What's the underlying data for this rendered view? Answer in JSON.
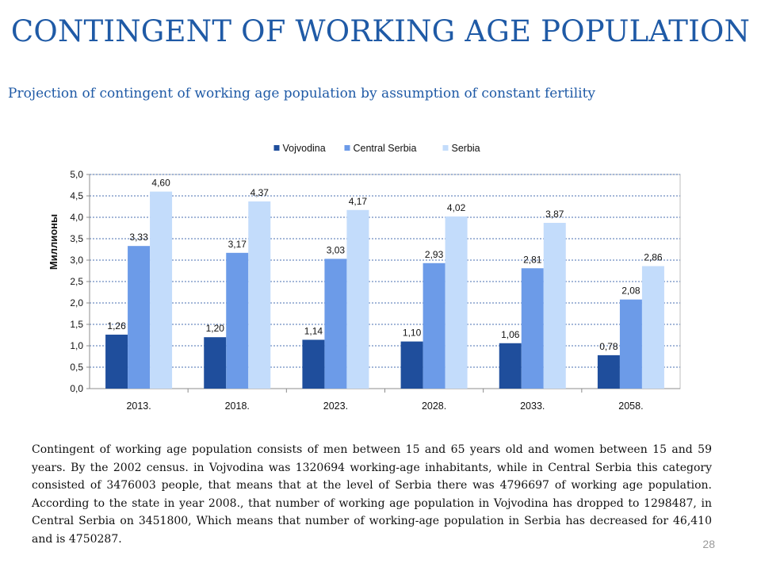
{
  "slide": {
    "title": "CONTINGENT OF WORKING AGE POPULATION",
    "subtitle": "Projection of contingent of working age population by assumption of constant fertility",
    "body": "Contingent of working age population consists of men between 15 and 65 years old and women between 15 and 59 years. By the 2002 census. in Vojvodina was 1320694 working-age inhabitants,  while in Central Serbia this category consisted of 3476003 people, that means that at the level of Serbia there was 4796697 of working age population. According to the state in year 2008., that number of working age population in Vojvodina has dropped to 1298487, in Central Serbia on 3451800, Which means that number of working-age population in Serbia has decreased for 46,410 and is 4750287.",
    "page_number": "28"
  },
  "chart_data": {
    "type": "bar",
    "title": "",
    "xlabel": "",
    "ylabel": "Миллионы",
    "categories": [
      "2013.",
      "2018.",
      "2023.",
      "2028.",
      "2033.",
      "2058."
    ],
    "series": [
      {
        "name": "Vojvodina",
        "color": "#1f4e9c",
        "values": [
          1.26,
          1.2,
          1.14,
          1.1,
          1.06,
          0.78
        ],
        "labels": [
          "1,26",
          "1,20",
          "1,14",
          "1,10",
          "1,06",
          "0,78"
        ]
      },
      {
        "name": "Central Serbia",
        "color": "#6c9be8",
        "values": [
          3.33,
          3.17,
          3.03,
          2.93,
          2.81,
          2.08
        ],
        "labels": [
          "3,33",
          "3,17",
          "3,03",
          "2,93",
          "2,81",
          "2,08"
        ]
      },
      {
        "name": "Serbia",
        "color": "#c3dcfb",
        "values": [
          4.6,
          4.37,
          4.17,
          4.02,
          3.87,
          2.86
        ],
        "labels": [
          "4,60",
          "4,37",
          "4,17",
          "4,02",
          "3,87",
          "2,86"
        ]
      }
    ],
    "ylim": [
      0,
      5
    ],
    "yticks": [
      "0,0",
      "0,5",
      "1,0",
      "1,5",
      "2,0",
      "2,5",
      "3,0",
      "3,5",
      "4,0",
      "4,5",
      "5,0"
    ],
    "grid": true,
    "legend": "top-center"
  }
}
